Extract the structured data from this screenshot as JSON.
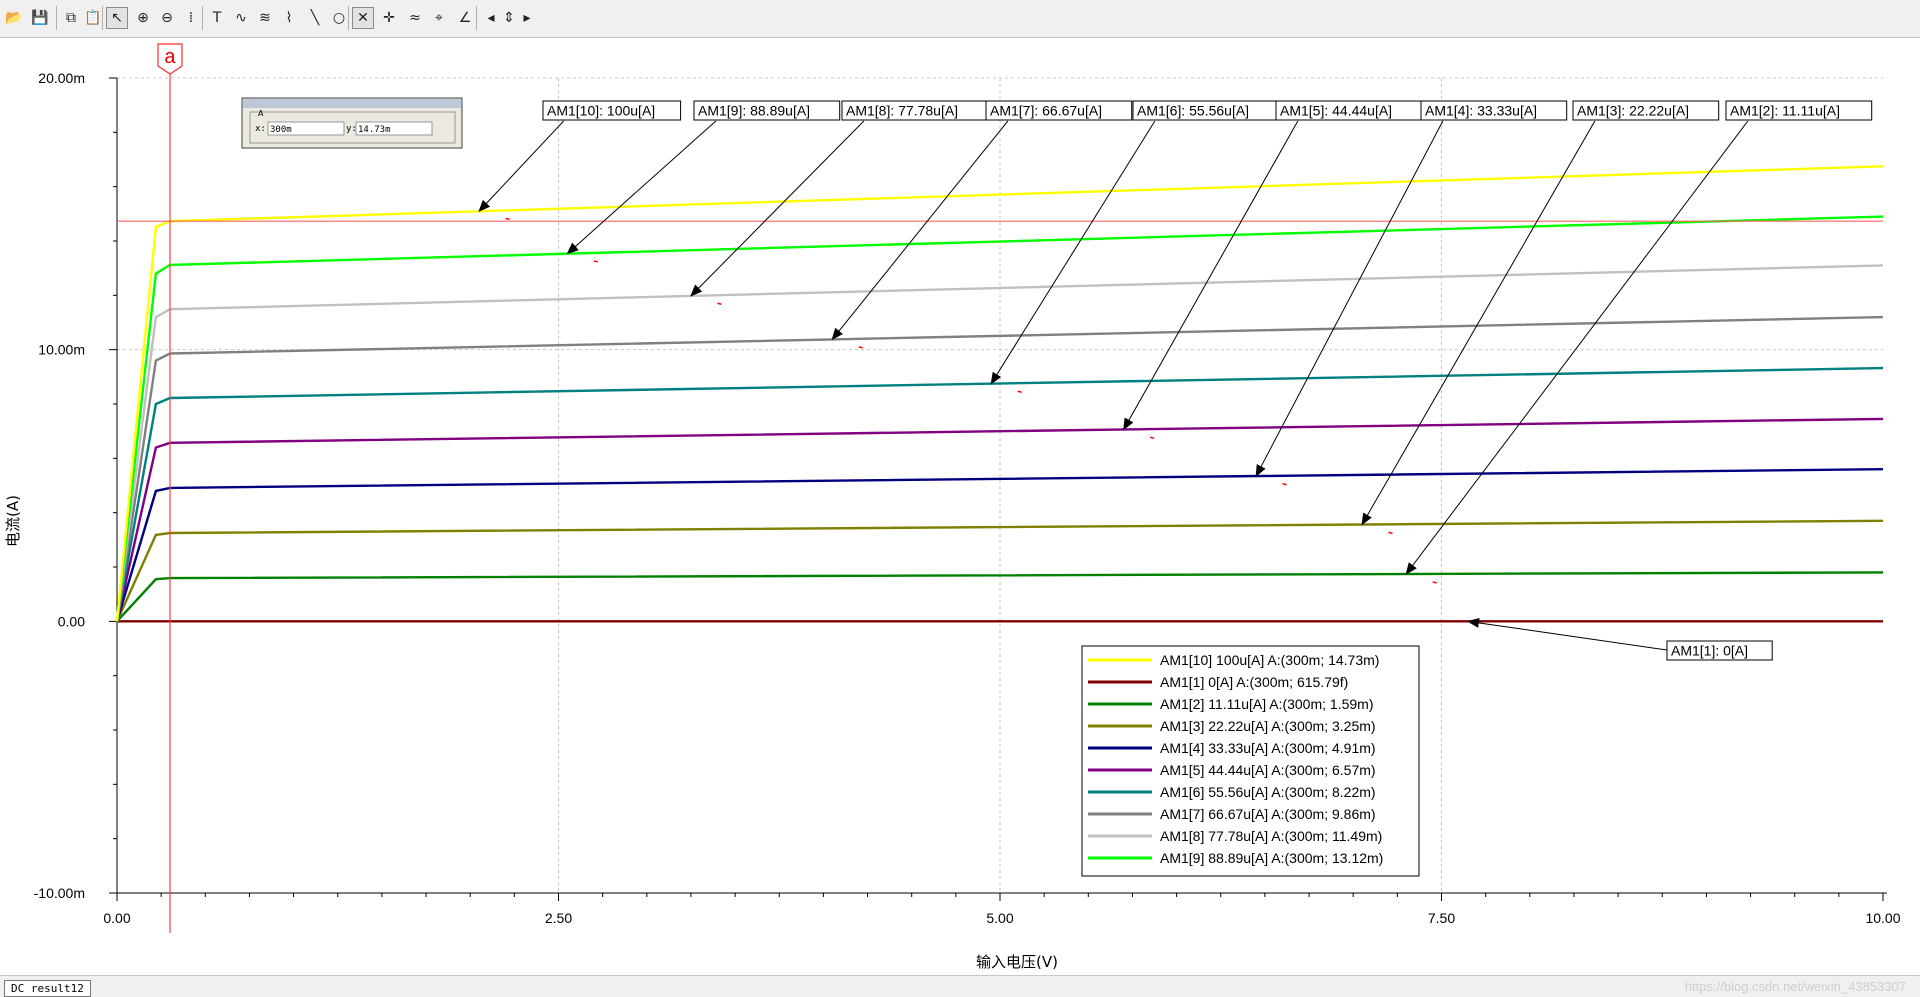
{
  "toolbar": {
    "buttons": [
      {
        "name": "open-file-icon",
        "glyph": "📂"
      },
      {
        "name": "save-icon",
        "glyph": "💾"
      },
      {
        "name": "copy-icon",
        "glyph": "⧉"
      },
      {
        "name": "paste-icon",
        "glyph": "📋"
      },
      {
        "name": "select-pointer-icon",
        "glyph": "↖"
      },
      {
        "name": "zoom-in-icon",
        "glyph": "⊕"
      },
      {
        "name": "zoom-out-icon",
        "glyph": "⊖"
      },
      {
        "name": "grid-icon",
        "glyph": "⁞"
      },
      {
        "name": "text-tool-icon",
        "glyph": "T"
      },
      {
        "name": "curve-tool-icon",
        "glyph": "∿"
      },
      {
        "name": "multi-curve-icon",
        "glyph": "≋"
      },
      {
        "name": "trace-icon",
        "glyph": "⌇"
      },
      {
        "name": "line-tool-icon",
        "glyph": "╲"
      },
      {
        "name": "ellipse-tool-icon",
        "glyph": "○"
      },
      {
        "name": "cursor-cross-icon",
        "glyph": "✕"
      },
      {
        "name": "cursor-cross-b-icon",
        "glyph": "✛"
      },
      {
        "name": "waveform-icon",
        "glyph": "≈"
      },
      {
        "name": "probe-icon",
        "glyph": "⌖"
      },
      {
        "name": "angle-tool-icon",
        "glyph": "∠"
      },
      {
        "name": "scroll-left-icon",
        "glyph": "◂"
      },
      {
        "name": "scroll-updown-icon",
        "glyph": "⇕"
      },
      {
        "name": "scroll-right-icon",
        "glyph": "▸"
      }
    ]
  },
  "chart_data": {
    "type": "line",
    "xlabel": "输入电压(V)",
    "ylabel": "电流(A)",
    "xlim": [
      0,
      10
    ],
    "ylim": [
      -0.01,
      0.02
    ],
    "xticks": [
      {
        "value": 0,
        "label": "0.00"
      },
      {
        "value": 2.5,
        "label": "2.50"
      },
      {
        "value": 5,
        "label": "5.00"
      },
      {
        "value": 7.5,
        "label": "7.50"
      },
      {
        "value": 10,
        "label": "10.00"
      }
    ],
    "yticks": [
      {
        "value": 0.02,
        "label": "20.00m"
      },
      {
        "value": 0.01,
        "label": "10.00m"
      },
      {
        "value": 0,
        "label": "0.00"
      },
      {
        "value": -0.01,
        "label": "-10.00m"
      }
    ],
    "cursor": {
      "x": 0.3,
      "y": 0.01473,
      "label": "a"
    },
    "readout": {
      "title": "A",
      "x_label": "x:",
      "x_value": "300m",
      "y_label": "y:",
      "y_value": "14.73m"
    },
    "series": [
      {
        "name": "AM1[10]",
        "param": "100u[A]",
        "color": "#ffff00",
        "y0_3": 0.01473,
        "y10": 0.01675,
        "knee": [
          0.22,
          0.01452
        ],
        "callout": "AM1[10]: 100u[A]",
        "callout_x": 2.05,
        "callout_label_x": 4.8,
        "legend": "AM1[10]  100u[A] A:(300m; 14.73m)"
      },
      {
        "name": "AM1[9]",
        "param": "88.89u[A]",
        "color": "#00ff00",
        "y0_3": 0.01312,
        "y10": 0.0149,
        "knee": [
          0.22,
          0.0128
        ],
        "callout": "AM1[9]: 88.89u[A]",
        "callout_x": 2.55,
        "callout_label_x": 6.25,
        "legend": "AM1[9]  88.89u[A] A:(300m; 13.12m)"
      },
      {
        "name": "AM1[8]",
        "param": "77.78u[A]",
        "color": "#c0c0c0",
        "y0_3": 0.01149,
        "y10": 0.0131,
        "knee": [
          0.22,
          0.0112
        ],
        "callout": "AM1[8]: 77.78u[A]",
        "callout_x": 3.25,
        "callout_label_x": 7.55,
        "legend": "AM1[8]  77.78u[A] A:(300m; 11.49m)"
      },
      {
        "name": "AM1[7]",
        "param": "66.67u[A]",
        "color": "#808080",
        "y0_3": 0.00986,
        "y10": 0.0112,
        "knee": [
          0.22,
          0.0096
        ],
        "callout": "AM1[7]: 66.67u[A]",
        "callout_x": 4.05,
        "callout_label_x": 8.85,
        "legend": "AM1[7]  66.67u[A] A:(300m; 9.86m)"
      },
      {
        "name": "AM1[6]",
        "param": "55.56u[A]",
        "color": "#008080",
        "y0_3": 0.00822,
        "y10": 0.00932,
        "knee": [
          0.22,
          0.008
        ],
        "callout": "AM1[6]: 55.56u[A]",
        "callout_x": 4.95,
        "callout_label_x": 10.15,
        "legend": "AM1[6]  55.56u[A] A:(300m; 8.22m)"
      },
      {
        "name": "AM1[5]",
        "param": "44.44u[A]",
        "color": "#800080",
        "y0_3": 0.00657,
        "y10": 0.00745,
        "knee": [
          0.22,
          0.0064
        ],
        "callout": "AM1[5]: 44.44u[A]",
        "callout_x": 5.7,
        "callout_label_x": 11.5,
        "legend": "AM1[5]  44.44u[A] A:(300m; 6.57m)"
      },
      {
        "name": "AM1[4]",
        "param": "33.33u[A]",
        "color": "#000080",
        "y0_3": 0.00491,
        "y10": 0.0056,
        "knee": [
          0.22,
          0.0048
        ],
        "callout": "AM1[4]: 33.33u[A]",
        "callout_x": 6.45,
        "callout_label_x": 12.9,
        "legend": "AM1[4]  33.33u[A] A:(300m; 4.91m)"
      },
      {
        "name": "AM1[3]",
        "param": "22.22u[A]",
        "color": "#808000",
        "y0_3": 0.00325,
        "y10": 0.0037,
        "knee": [
          0.22,
          0.00318
        ],
        "callout": "AM1[3]: 22.22u[A]",
        "callout_x": 7.05,
        "callout_label_x": 14.25,
        "legend": "AM1[3]  22.22u[A] A:(300m; 3.25m)"
      },
      {
        "name": "AM1[2]",
        "param": "11.11u[A]",
        "color": "#008000",
        "y0_3": 0.00159,
        "y10": 0.0018,
        "knee": [
          0.22,
          0.00155
        ],
        "callout": "AM1[2]: 11.11u[A]",
        "callout_x": 7.3,
        "callout_label_x": 15.55,
        "legend": "AM1[2]  11.11u[A] A:(300m; 1.59m)"
      },
      {
        "name": "AM1[1]",
        "param": "0[A]",
        "color": "#800000",
        "y0_3": 6.1579e-13,
        "y10": 0.0,
        "knee": [
          0.22,
          0.0
        ],
        "callout": "AM1[1]: 0[A]",
        "callout_x": 7.65,
        "callout_label_x": 12.6,
        "legend": "AM1[1]  0[A] A:(300m; 615.79f)"
      }
    ],
    "legend_order": [
      "AM1[10]",
      "AM1[1]",
      "AM1[2]",
      "AM1[3]",
      "AM1[4]",
      "AM1[5]",
      "AM1[6]",
      "AM1[7]",
      "AM1[8]",
      "AM1[9]"
    ]
  },
  "status": {
    "tab": "DC result12",
    "watermark": "https://blog.csdn.net/weixin_43853307"
  }
}
